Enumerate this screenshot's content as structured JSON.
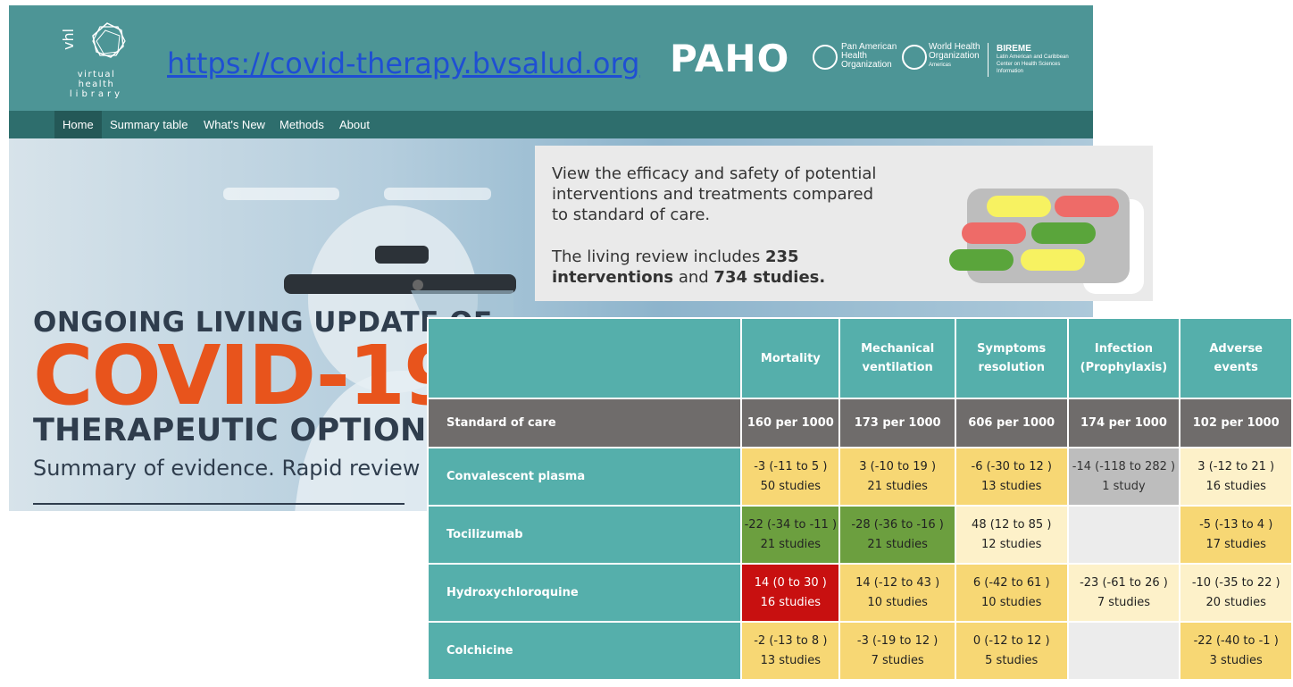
{
  "header": {
    "vhl_logo_text": "vhl",
    "vhl_subtitle_1": "virtual health",
    "vhl_subtitle_2": "library",
    "url": "https://covid-therapy.bvsalud.org",
    "paho_logo": "PAHO",
    "pan_american_1": "Pan American",
    "pan_american_2": "Health",
    "pan_american_3": "Organization",
    "who_1": "World Health",
    "who_2": "Organization",
    "who_3": "Americas",
    "bireme_name": "BIREME",
    "bireme_desc": "Latin American and Caribbean Center on Health Sciences Information"
  },
  "nav": {
    "items": [
      "Home",
      "Summary table",
      "What's New",
      "Methods",
      "About"
    ]
  },
  "hero": {
    "title_line_1": "ONGOING LIVING UPDATE OF",
    "title_line_2": "COVID-19",
    "title_line_3": "THERAPEUTIC OPTIONS",
    "subtitle": "Summary of evidence. Rapid review"
  },
  "info": {
    "line_1": "View the efficacy and safety of potential interventions and treatments compared to standard of care.",
    "line_2_prefix": "The living review includes ",
    "interventions": "235 interventions",
    "line_2_mid": " and ",
    "studies": "734 studies.",
    "graphic_colors": {
      "yellow": "#f7f261",
      "red": "#ee6b68",
      "green": "#5aa53b",
      "grey": "#bdbdbd"
    }
  },
  "table": {
    "columns": [
      "Mortality",
      "Mechanical ventilation",
      "Symptoms resolution",
      "Infection (Prophylaxis)",
      "Adverse events"
    ],
    "standard_of_care": {
      "label": "Standard of care",
      "values": [
        "160 per 1000",
        "173 per 1000",
        "606 per 1000",
        "174 per 1000",
        "102 per 1000"
      ]
    },
    "rows": [
      {
        "label": "Convalescent plasma",
        "cells": [
          {
            "est": "-3 (-11 to 5 )",
            "studies": "50 studies",
            "color": "yellow"
          },
          {
            "est": "3 (-10 to 19 )",
            "studies": "21 studies",
            "color": "yellow"
          },
          {
            "est": "-6 (-30 to 12 )",
            "studies": "13 studies",
            "color": "yellow"
          },
          {
            "est": "-14 (-118 to 282 )",
            "studies": "1 study",
            "color": "grey"
          },
          {
            "est": "3 (-12 to 21 )",
            "studies": "16 studies",
            "color": "lightyellow"
          }
        ]
      },
      {
        "label": "Tocilizumab",
        "cells": [
          {
            "est": "-22 (-34 to -11 )",
            "studies": "21 studies",
            "color": "green"
          },
          {
            "est": "-28 (-36 to -16 )",
            "studies": "21 studies",
            "color": "green"
          },
          {
            "est": "48 (12 to 85 )",
            "studies": "12 studies",
            "color": "lightyellow"
          },
          {
            "est": "",
            "studies": "",
            "color": "empty"
          },
          {
            "est": "-5 (-13 to 4 )",
            "studies": "17 studies",
            "color": "yellow"
          }
        ]
      },
      {
        "label": "Hydroxychloroquine",
        "cells": [
          {
            "est": "14 (0 to 30 )",
            "studies": "16 studies",
            "color": "red"
          },
          {
            "est": "14 (-12 to 43 )",
            "studies": "10 studies",
            "color": "yellow"
          },
          {
            "est": "6 (-42 to 61 )",
            "studies": "10 studies",
            "color": "yellow"
          },
          {
            "est": "-23 (-61 to 26 )",
            "studies": "7 studies",
            "color": "lightyellow"
          },
          {
            "est": "-10 (-35 to 22 )",
            "studies": "20 studies",
            "color": "lightyellow"
          }
        ]
      },
      {
        "label": "Colchicine",
        "cells": [
          {
            "est": "-2 (-13 to 8 )",
            "studies": "13 studies",
            "color": "yellow"
          },
          {
            "est": "-3 (-19 to 12 )",
            "studies": "7 studies",
            "color": "yellow"
          },
          {
            "est": "0 (-12 to 12 )",
            "studies": "5 studies",
            "color": "yellow"
          },
          {
            "est": "",
            "studies": "",
            "color": "empty"
          },
          {
            "est": "-22 (-40 to -1 )",
            "studies": "3 studies",
            "color": "yellow"
          }
        ]
      }
    ]
  }
}
